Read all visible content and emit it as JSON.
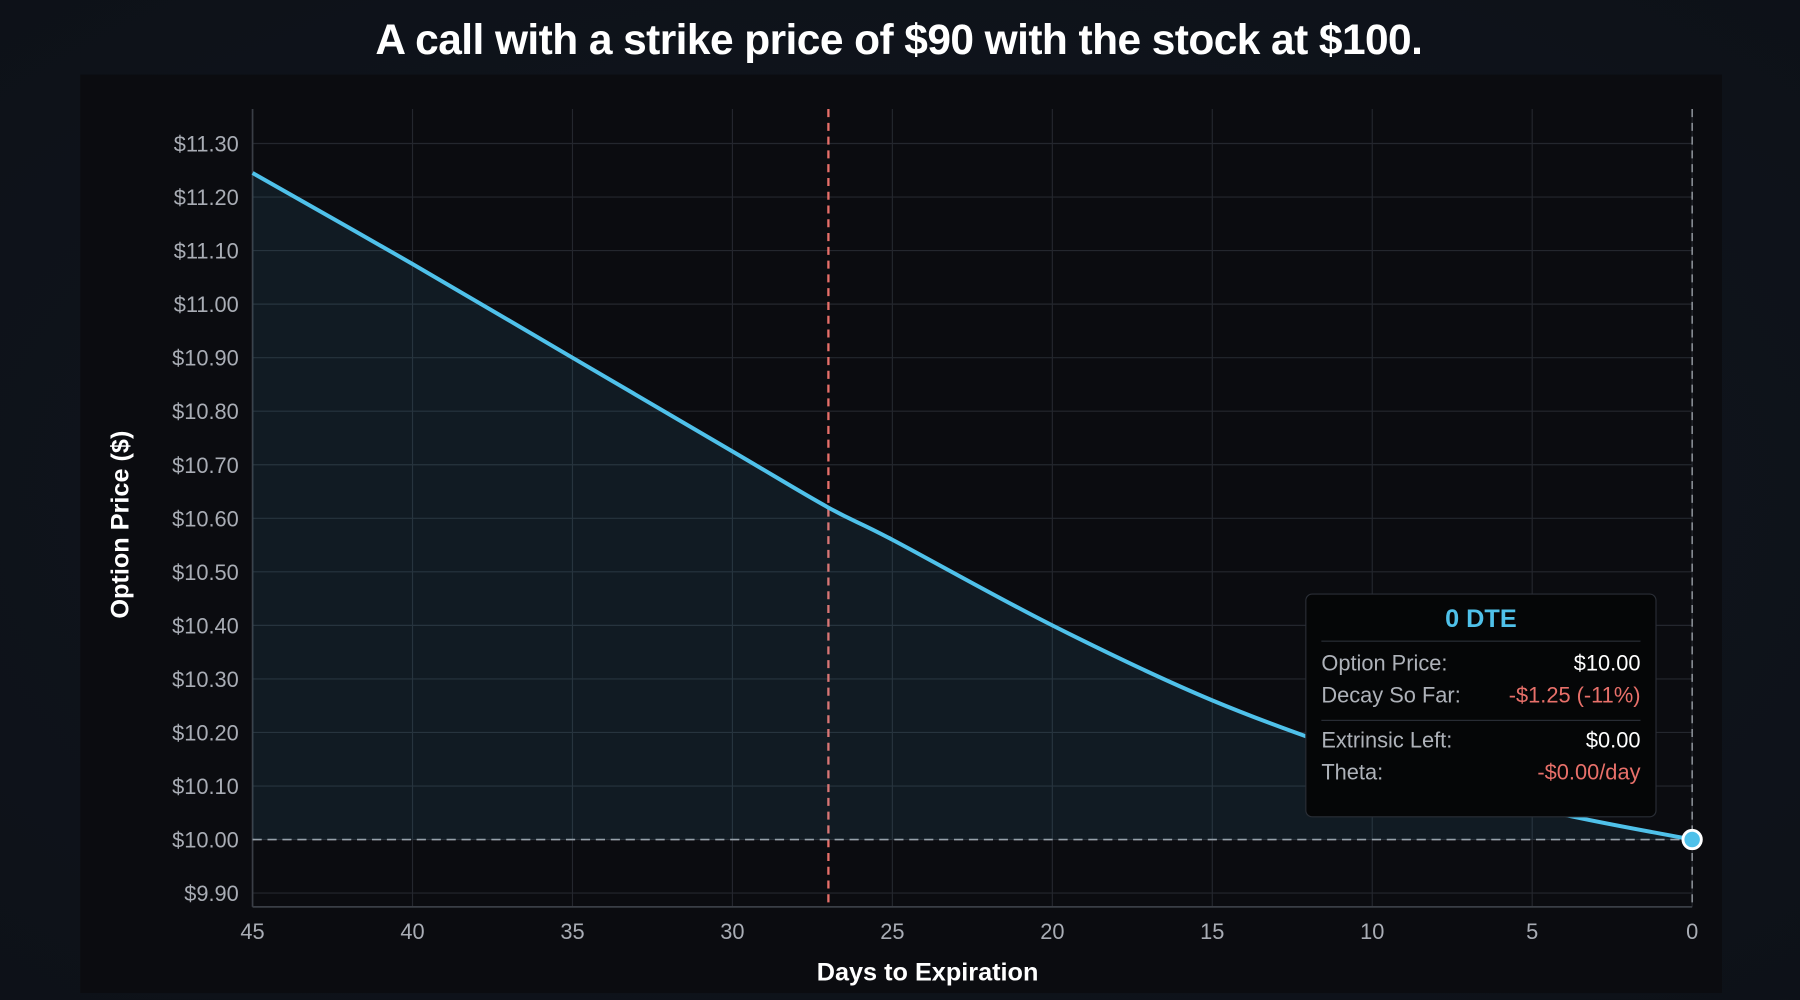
{
  "title": "A call with a strike price of $90 with the stock at $100.",
  "chart_data": {
    "type": "area",
    "xlabel": "Days to Expiration",
    "ylabel": "Option Price ($)",
    "xlim": [
      45,
      0
    ],
    "ylim": [
      9.875,
      11.36
    ],
    "x_ticks": [
      "45",
      "40",
      "35",
      "30",
      "25",
      "20",
      "15",
      "10",
      "5",
      "0"
    ],
    "y_ticks": [
      "$11.30",
      "$11.20",
      "$11.10",
      "$11.00",
      "$10.90",
      "$10.80",
      "$10.70",
      "$10.60",
      "$10.50",
      "$10.40",
      "$10.30",
      "$10.20",
      "$10.10",
      "$10.00",
      "$9.90"
    ],
    "grid": true,
    "series": [
      {
        "x": [
          45,
          40,
          35,
          30,
          27,
          25,
          20,
          15,
          10,
          5,
          0
        ],
        "y": [
          11.245,
          11.075,
          10.9,
          10.725,
          10.62,
          10.56,
          10.4,
          10.26,
          10.15,
          10.06,
          10.0
        ],
        "color": "#4fc1ea"
      }
    ],
    "reference_lines": [
      {
        "axis": "x",
        "value": 27,
        "color": "#e8706a",
        "style": "dashed"
      },
      {
        "axis": "y",
        "value": 10.0,
        "color": "#9aa0a8",
        "style": "dashed"
      },
      {
        "axis": "x",
        "value": 0,
        "color": "#9aa0a8",
        "style": "dashed"
      }
    ],
    "highlight_point": {
      "x": 0,
      "y": 10.0
    }
  },
  "tooltip": {
    "title": "0 DTE",
    "rows": [
      {
        "label": "Option Price:",
        "value": "$10.00"
      },
      {
        "label": "Decay So Far:",
        "value": "-$1.25 (-11%)"
      },
      {
        "label": "Extrinsic Left:",
        "value": "$0.00"
      },
      {
        "label": "Theta:",
        "value": "-$0.00/day"
      }
    ],
    "colors": {
      "title": "#4fc1ea",
      "negative": "#e8706a"
    }
  }
}
